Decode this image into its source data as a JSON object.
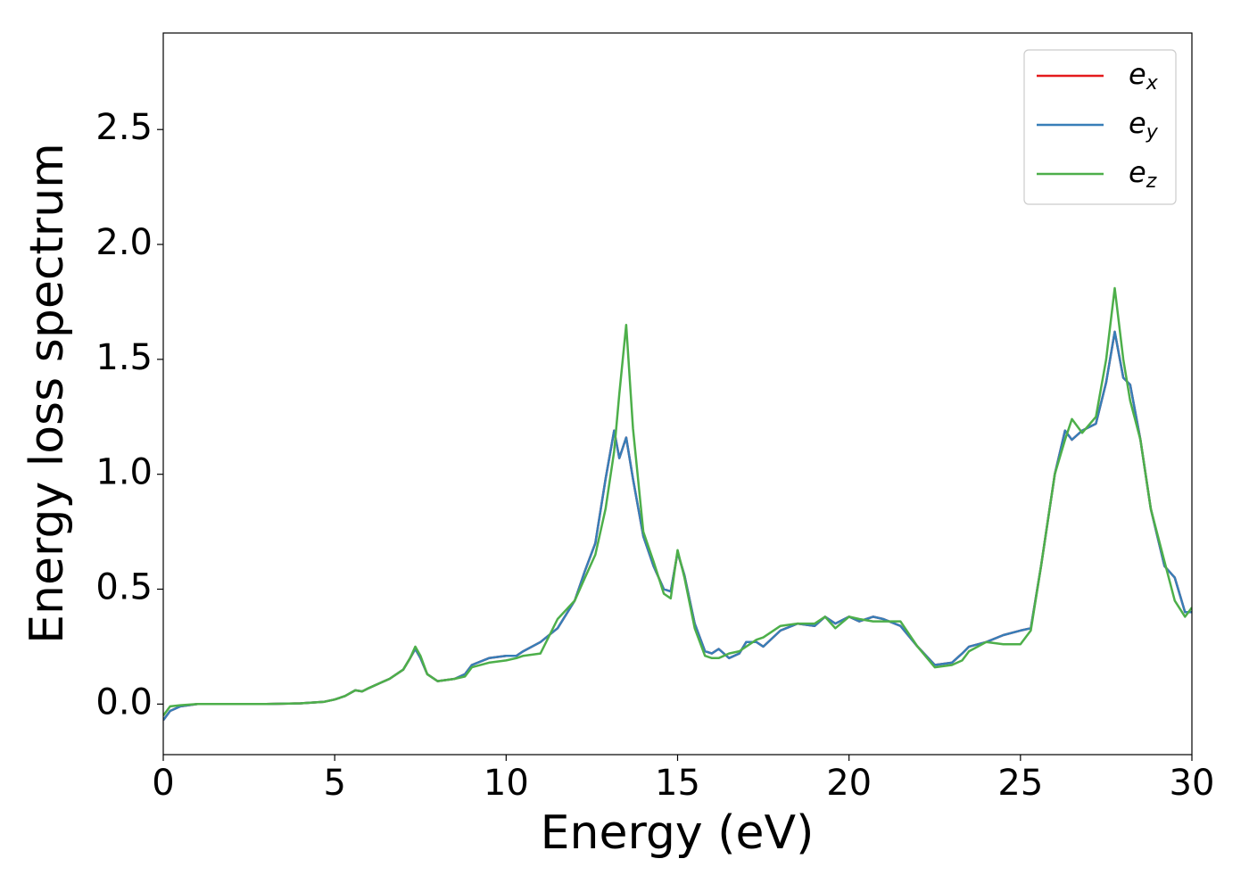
{
  "chart_data": {
    "type": "line",
    "xlabel": "Energy (eV)",
    "ylabel": "Energy loss spectrum",
    "x": [
      0,
      0.2,
      0.5,
      1,
      2,
      3,
      4,
      4.7,
      5,
      5.3,
      5.6,
      5.8,
      6,
      6.3,
      6.6,
      7,
      7.2,
      7.35,
      7.5,
      7.7,
      8,
      8.5,
      8.8,
      9,
      9.5,
      10,
      10.3,
      10.5,
      11,
      11.5,
      12,
      12.3,
      12.6,
      12.9,
      13.15,
      13.3,
      13.5,
      13.7,
      14,
      14.3,
      14.6,
      14.8,
      15,
      15.2,
      15.5,
      15.8,
      16,
      16.2,
      16.5,
      16.8,
      17,
      17.3,
      17.5,
      18,
      18.5,
      19,
      19.3,
      19.6,
      20,
      20.3,
      20.7,
      21,
      21.5,
      22,
      22.5,
      23,
      23.3,
      23.5,
      24,
      24.5,
      25,
      25.3,
      25.6,
      26,
      26.3,
      26.5,
      26.8,
      27.2,
      27.5,
      27.75,
      28,
      28.2,
      28.5,
      28.8,
      29.2,
      29.5,
      29.8,
      30
    ],
    "series": [
      {
        "name": "ex",
        "color": "#e41a1c",
        "values": [
          -0.07,
          -0.03,
          -0.01,
          0,
          0,
          0,
          0.003,
          0.01,
          0.02,
          0.035,
          0.06,
          0.055,
          0.07,
          0.09,
          0.11,
          0.15,
          0.2,
          0.24,
          0.2,
          0.13,
          0.1,
          0.11,
          0.13,
          0.17,
          0.2,
          0.21,
          0.21,
          0.23,
          0.27,
          0.33,
          0.45,
          0.58,
          0.7,
          0.98,
          1.19,
          1.07,
          1.16,
          0.98,
          0.73,
          0.6,
          0.5,
          0.49,
          0.66,
          0.56,
          0.35,
          0.23,
          0.22,
          0.24,
          0.2,
          0.22,
          0.27,
          0.27,
          0.25,
          0.32,
          0.35,
          0.34,
          0.38,
          0.35,
          0.38,
          0.36,
          0.38,
          0.37,
          0.34,
          0.25,
          0.17,
          0.18,
          0.22,
          0.25,
          0.27,
          0.3,
          0.32,
          0.33,
          0.6,
          1.0,
          1.19,
          1.15,
          1.19,
          1.22,
          1.4,
          1.62,
          1.42,
          1.39,
          1.15,
          0.85,
          0.6,
          0.55,
          0.4,
          0.4
        ]
      },
      {
        "name": "ey",
        "color": "#377eb8",
        "values": [
          -0.07,
          -0.03,
          -0.01,
          0,
          0,
          0,
          0.003,
          0.01,
          0.02,
          0.035,
          0.06,
          0.055,
          0.07,
          0.09,
          0.11,
          0.15,
          0.2,
          0.24,
          0.2,
          0.13,
          0.1,
          0.11,
          0.13,
          0.17,
          0.2,
          0.21,
          0.21,
          0.23,
          0.27,
          0.33,
          0.45,
          0.58,
          0.7,
          0.98,
          1.19,
          1.07,
          1.16,
          0.98,
          0.73,
          0.6,
          0.5,
          0.49,
          0.66,
          0.56,
          0.35,
          0.23,
          0.22,
          0.24,
          0.2,
          0.22,
          0.27,
          0.27,
          0.25,
          0.32,
          0.35,
          0.34,
          0.38,
          0.35,
          0.38,
          0.36,
          0.38,
          0.37,
          0.34,
          0.25,
          0.17,
          0.18,
          0.22,
          0.25,
          0.27,
          0.3,
          0.32,
          0.33,
          0.6,
          1.0,
          1.19,
          1.15,
          1.19,
          1.22,
          1.4,
          1.62,
          1.42,
          1.39,
          1.15,
          0.85,
          0.6,
          0.55,
          0.4,
          0.4
        ]
      },
      {
        "name": "ez",
        "color": "#4daf4a",
        "values": [
          -0.05,
          -0.01,
          -0.005,
          0,
          0,
          0,
          0.003,
          0.01,
          0.02,
          0.035,
          0.06,
          0.055,
          0.07,
          0.09,
          0.11,
          0.15,
          0.2,
          0.25,
          0.21,
          0.13,
          0.1,
          0.11,
          0.12,
          0.16,
          0.18,
          0.19,
          0.2,
          0.21,
          0.22,
          0.37,
          0.45,
          0.55,
          0.65,
          0.85,
          1.1,
          1.35,
          1.65,
          1.2,
          0.75,
          0.62,
          0.48,
          0.46,
          0.67,
          0.55,
          0.33,
          0.21,
          0.2,
          0.2,
          0.22,
          0.23,
          0.25,
          0.28,
          0.29,
          0.34,
          0.35,
          0.35,
          0.38,
          0.33,
          0.38,
          0.37,
          0.36,
          0.36,
          0.36,
          0.25,
          0.16,
          0.17,
          0.19,
          0.23,
          0.27,
          0.26,
          0.26,
          0.32,
          0.6,
          1.0,
          1.15,
          1.24,
          1.18,
          1.25,
          1.5,
          1.81,
          1.5,
          1.32,
          1.15,
          0.85,
          0.62,
          0.45,
          0.38,
          0.42
        ]
      }
    ],
    "xlim": [
      0,
      30
    ],
    "xticks": [
      0,
      5,
      10,
      15,
      20,
      25,
      30
    ],
    "ylim": [
      -0.22,
      2.92
    ],
    "yticks": [
      {
        "value": 0,
        "label": "0.0"
      },
      {
        "value": 0.5,
        "label": "0.5"
      },
      {
        "value": 1,
        "label": "1.0"
      },
      {
        "value": 1.5,
        "label": "1.5"
      },
      {
        "value": 2,
        "label": "2.0"
      },
      {
        "value": 2.5,
        "label": "2.5"
      }
    ],
    "legend": "upper right"
  }
}
